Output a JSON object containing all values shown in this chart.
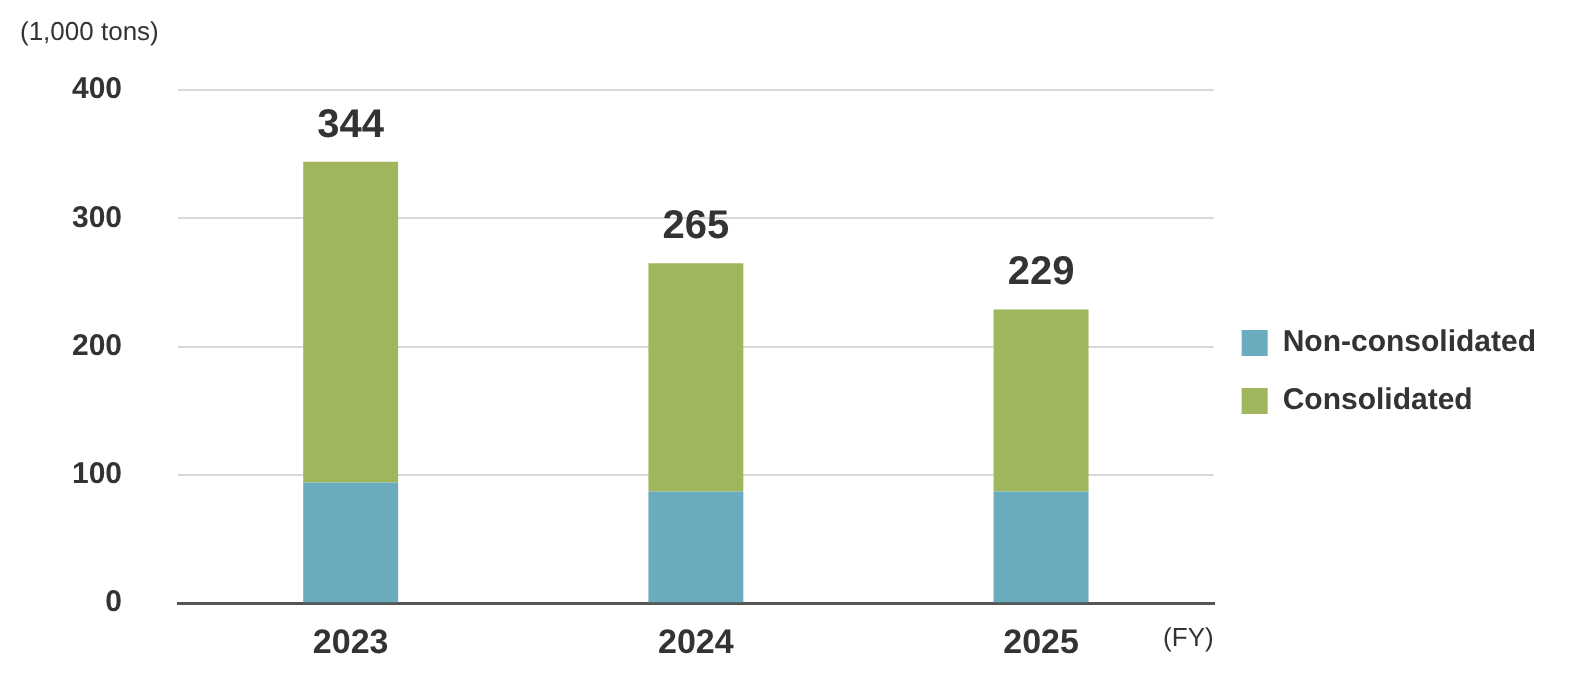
{
  "chart_data": {
    "type": "bar",
    "stacked": true,
    "ylabel": "(1,000 tons)",
    "xlabel": "(FY)",
    "categories": [
      "2023",
      "2024",
      "2025"
    ],
    "series": [
      {
        "name": "Non-consolidated",
        "color": "#6aabbd",
        "values": [
          94,
          87,
          87
        ]
      },
      {
        "name": "Consolidated",
        "color": "#a0b65c",
        "values": [
          250,
          178,
          142
        ]
      }
    ],
    "totals": [
      "344",
      "265",
      "229"
    ],
    "ylim": [
      0,
      400
    ],
    "yticks": [
      0,
      100,
      200,
      300,
      400
    ],
    "grid": "y",
    "legend": "right"
  }
}
